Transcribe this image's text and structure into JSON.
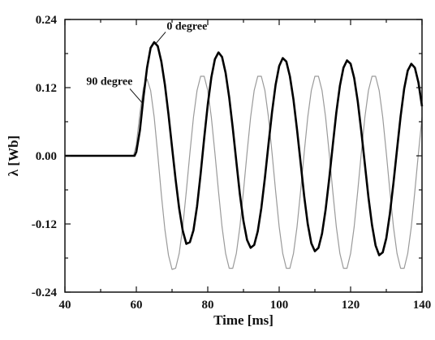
{
  "chart_data": {
    "type": "line",
    "title": "",
    "xlabel": "Time [ms]",
    "ylabel": "λ [Wb]",
    "xlim": [
      40,
      140
    ],
    "ylim": [
      -0.24,
      0.24
    ],
    "xticks": [
      40,
      60,
      80,
      100,
      120,
      140
    ],
    "yticks": [
      -0.24,
      -0.12,
      0.0,
      0.12,
      0.24
    ],
    "ytick_labels": [
      "-0.24",
      "-0.12",
      "0.00",
      "0.12",
      "0.24"
    ],
    "grid": false,
    "legend": "none",
    "annotations": [
      {
        "text": "0 degree",
        "series": "0 degree"
      },
      {
        "text": "90 degree",
        "series": "90 degree"
      }
    ],
    "series": [
      {
        "name": "0 degree",
        "color": "#000000",
        "style": "solid-thick",
        "x": [
          40,
          59.5,
          60,
          61,
          62,
          63,
          64,
          65,
          66,
          67,
          68,
          69,
          70,
          71,
          72,
          73,
          74,
          75,
          76,
          77,
          78,
          79,
          80,
          81,
          82,
          83,
          84,
          85,
          86,
          87,
          88,
          89,
          90,
          91,
          92,
          93,
          94,
          95,
          96,
          97,
          98,
          99,
          100,
          101,
          102,
          103,
          104,
          105,
          106,
          107,
          108,
          109,
          110,
          111,
          112,
          113,
          114,
          115,
          116,
          117,
          118,
          119,
          120,
          121,
          122,
          123,
          124,
          125,
          126,
          127,
          128,
          129,
          130,
          131,
          132,
          133,
          134,
          135,
          136,
          137,
          138,
          139,
          140
        ],
        "y": [
          0,
          0,
          0.007,
          0.045,
          0.104,
          0.155,
          0.19,
          0.2,
          0.193,
          0.166,
          0.125,
          0.073,
          0.015,
          -0.042,
          -0.093,
          -0.132,
          -0.155,
          -0.152,
          -0.131,
          -0.089,
          -0.032,
          0.031,
          0.09,
          0.138,
          0.17,
          0.182,
          0.174,
          0.146,
          0.103,
          0.049,
          -0.01,
          -0.068,
          -0.115,
          -0.148,
          -0.162,
          -0.157,
          -0.133,
          -0.092,
          -0.039,
          0.02,
          0.077,
          0.125,
          0.158,
          0.172,
          0.166,
          0.14,
          0.099,
          0.046,
          -0.012,
          -0.071,
          -0.12,
          -0.154,
          -0.168,
          -0.162,
          -0.137,
          -0.095,
          -0.041,
          0.018,
          0.076,
          0.123,
          0.155,
          0.168,
          0.162,
          0.137,
          0.096,
          0.043,
          -0.015,
          -0.073,
          -0.122,
          -0.158,
          -0.175,
          -0.17,
          -0.145,
          -0.102,
          -0.048,
          0.011,
          0.069,
          0.118,
          0.15,
          0.162,
          0.155,
          0.129,
          0.087
        ]
      },
      {
        "name": "90 degree",
        "color": "#9a9a9a",
        "style": "solid-thin",
        "x": [
          40,
          59.2,
          60,
          61,
          62,
          63,
          64,
          65,
          66,
          67,
          68,
          69,
          70,
          71,
          72,
          73,
          74,
          75,
          76,
          77,
          78,
          79,
          80,
          81,
          82,
          83,
          84,
          85,
          86,
          87,
          88,
          89,
          90,
          91,
          92,
          93,
          94,
          95,
          96,
          97,
          98,
          99,
          100,
          101,
          102,
          103,
          104,
          105,
          106,
          107,
          108,
          109,
          110,
          111,
          112,
          113,
          114,
          115,
          116,
          117,
          118,
          119,
          120,
          121,
          122,
          123,
          124,
          125,
          126,
          127,
          128,
          129,
          130,
          131,
          132,
          133,
          134,
          135,
          136,
          137,
          138,
          139,
          140
        ],
        "y": [
          0,
          0,
          0.02,
          0.075,
          0.12,
          0.135,
          0.115,
          0.068,
          0.002,
          -0.068,
          -0.13,
          -0.175,
          -0.2,
          -0.198,
          -0.172,
          -0.125,
          -0.062,
          0.005,
          0.068,
          0.115,
          0.14,
          0.14,
          0.115,
          0.068,
          0.005,
          -0.062,
          -0.125,
          -0.172,
          -0.198,
          -0.198,
          -0.172,
          -0.125,
          -0.062,
          0.005,
          0.068,
          0.115,
          0.14,
          0.14,
          0.115,
          0.068,
          0.005,
          -0.062,
          -0.125,
          -0.172,
          -0.198,
          -0.198,
          -0.172,
          -0.125,
          -0.062,
          0.005,
          0.068,
          0.115,
          0.14,
          0.14,
          0.115,
          0.068,
          0.005,
          -0.062,
          -0.125,
          -0.172,
          -0.198,
          -0.198,
          -0.172,
          -0.125,
          -0.062,
          0.005,
          0.068,
          0.115,
          0.14,
          0.14,
          0.115,
          0.068,
          0.005,
          -0.062,
          -0.125,
          -0.172,
          -0.198,
          -0.198,
          -0.172,
          -0.125,
          -0.062,
          0.005,
          0.068
        ]
      }
    ]
  }
}
